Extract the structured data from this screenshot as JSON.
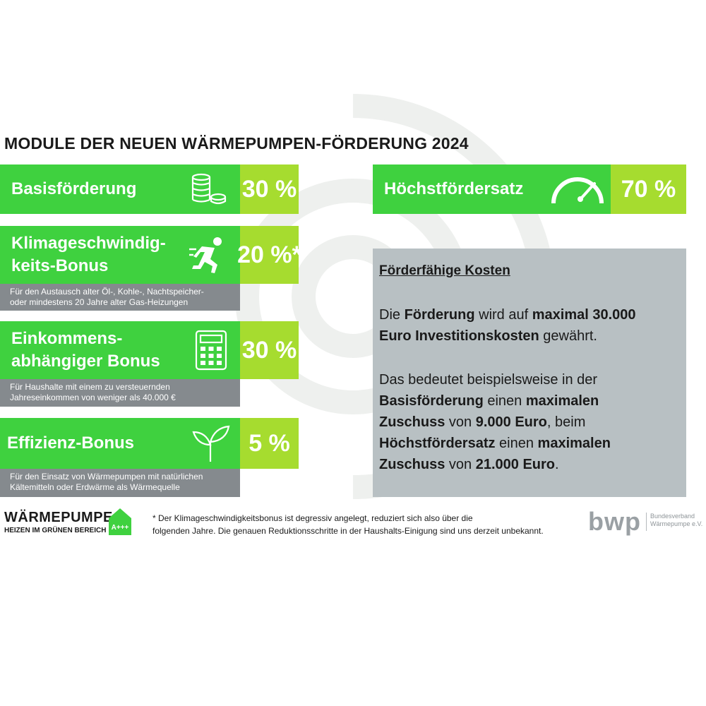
{
  "title": "MODULE DER NEUEN WÄRMEPUMPEN-FÖRDERUNG 2024",
  "colors": {
    "green": "#3fd13f",
    "lime": "#a6dc2f",
    "gray_bar": "#858a8e",
    "box": "#b8c0c3"
  },
  "modules": [
    {
      "name": "Basisförderung",
      "percent": "30 %",
      "icon": "coins-icon",
      "note": ""
    },
    {
      "name_line1": "Klimageschwindig-",
      "name_line2": "keits-Bonus",
      "percent": "20 %*",
      "icon": "runner-icon",
      "note_line1": "Für den Austausch alter Öl-, Kohle-, Nachtspeicher-",
      "note_line2": "oder mindestens 20 Jahre alter Gas-Heizungen"
    },
    {
      "name_line1": "Einkommens-",
      "name_line2": "abhängiger Bonus",
      "percent": "30 %",
      "icon": "calculator-icon",
      "note_line1": "Für Haushalte mit einem zu versteuernden",
      "note_line2": "Jahreseinkommen von weniger als 40.000 €"
    },
    {
      "name": "Effizienz-Bonus",
      "percent": "5 %",
      "icon": "sprout-icon",
      "note_line1": "Für den Einsatz von Wärmepumpen mit natürlichen",
      "note_line2": "Kältemitteln oder Erdwärme als Wärmequelle"
    }
  ],
  "max_rate": {
    "name": "Höchstfördersatz",
    "percent": "70 %",
    "icon": "gauge-icon"
  },
  "costs": {
    "heading": "Förderfähige Kosten",
    "p1": {
      "a": "Die ",
      "b": "Förderung",
      "c": " wird auf ",
      "d": "maximal 30.000 Euro Investitionskosten",
      "e": " gewährt."
    },
    "p2": {
      "a": "Das bedeutet beispielsweise in der ",
      "b": "Basisförderung",
      "c": " einen ",
      "d": "maximalen Zuschuss",
      "e": " von ",
      "f": "9.000 Euro",
      "g": ", beim ",
      "h": "Höchstfördersatz",
      "i": " einen ",
      "j": "maximalen Zuschuss",
      "k": " von ",
      "l": "21.000 Euro",
      "m": "."
    }
  },
  "footer": {
    "logo_name": "WÄRMEPUMPE",
    "logo_tagline": "HEIZEN IM GRÜNEN BEREICH",
    "logo_badge": "A+++",
    "footnote_line1": "* Der Klimageschwindigkeitsbonus ist degressiv angelegt, reduziert sich also über die",
    "footnote_line2": "folgenden Jahre. Die genauen Reduktionsschritte in der Haushalts-Einigung sind uns derzeit unbekannt.",
    "bwp": "bwp",
    "bwp_line1": "Bundesverband",
    "bwp_line2": "Wärmepumpe e.V."
  }
}
